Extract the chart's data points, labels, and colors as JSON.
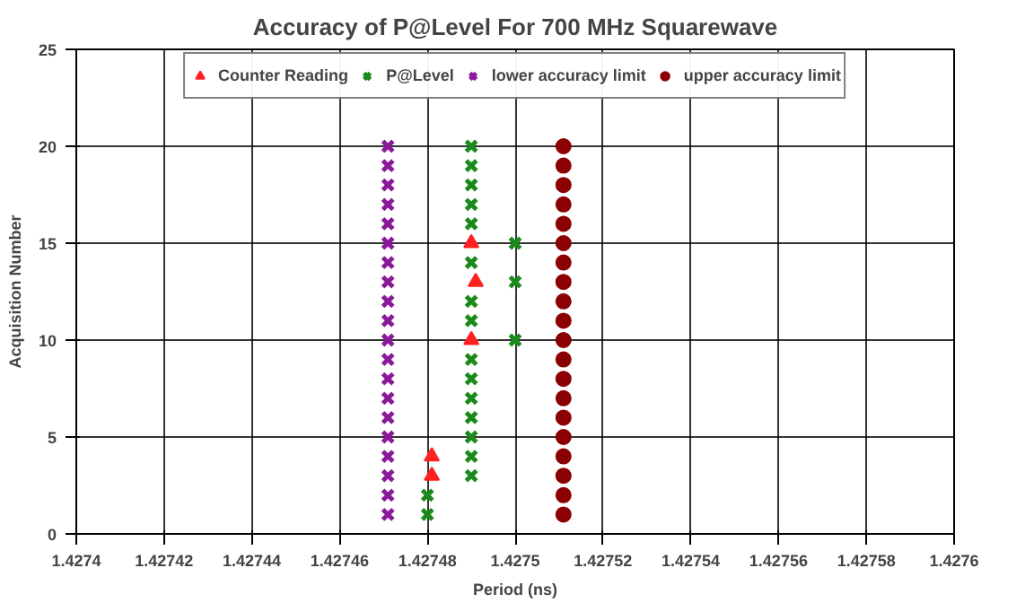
{
  "chart_data": {
    "type": "scatter",
    "title": "Accuracy of P@Level For 700 MHz Squarewave",
    "xlabel": "Period (ns)",
    "ylabel": "Acquisition Number",
    "xlim": [
      1.4274,
      1.4276
    ],
    "xticks": [
      1.4274,
      1.42742,
      1.42744,
      1.42746,
      1.42748,
      1.4275,
      1.42752,
      1.42754,
      1.42756,
      1.42758,
      1.4276
    ],
    "ylim": [
      0,
      25
    ],
    "yticks": [
      0,
      5,
      10,
      15,
      20,
      25
    ],
    "grid": true,
    "legend": "top",
    "series": [
      {
        "name": "Counter Reading",
        "color": "#ff2020",
        "marker": "triangle",
        "x": [
          1.427481,
          1.427481,
          1.42749,
          1.427491,
          1.42749
        ],
        "values": [
          3,
          4,
          10,
          13,
          15
        ]
      },
      {
        "name": "P@Level",
        "color": "#1a8a1a",
        "marker": "cross",
        "x": [
          1.42748,
          1.42748,
          1.42749,
          1.42749,
          1.42749,
          1.42749,
          1.42749,
          1.42749,
          1.42749,
          1.4275,
          1.42749,
          1.42749,
          1.4275,
          1.42749,
          1.4275,
          1.42749,
          1.42749,
          1.42749,
          1.42749,
          1.42749
        ],
        "values": [
          1,
          2,
          3,
          4,
          5,
          6,
          7,
          8,
          9,
          10,
          11,
          12,
          13,
          14,
          15,
          16,
          17,
          18,
          19,
          20
        ]
      },
      {
        "name": "lower accuracy limit",
        "color": "#8b1a9a",
        "marker": "cross",
        "x": [
          1.427471,
          1.427471,
          1.427471,
          1.427471,
          1.427471,
          1.427471,
          1.427471,
          1.427471,
          1.427471,
          1.427471,
          1.427471,
          1.427471,
          1.427471,
          1.427471,
          1.427471,
          1.427471,
          1.427471,
          1.427471,
          1.427471,
          1.427471
        ],
        "values": [
          1,
          2,
          3,
          4,
          5,
          6,
          7,
          8,
          9,
          10,
          11,
          12,
          13,
          14,
          15,
          16,
          17,
          18,
          19,
          20
        ]
      },
      {
        "name": "upper accuracy limit",
        "color": "#8b0000",
        "marker": "circle",
        "x": [
          1.427511,
          1.427511,
          1.427511,
          1.427511,
          1.427511,
          1.427511,
          1.427511,
          1.427511,
          1.427511,
          1.427511,
          1.427511,
          1.427511,
          1.427511,
          1.427511,
          1.427511,
          1.427511,
          1.427511,
          1.427511,
          1.427511,
          1.427511
        ],
        "values": [
          1,
          2,
          3,
          4,
          5,
          6,
          7,
          8,
          9,
          10,
          11,
          12,
          13,
          14,
          15,
          16,
          17,
          18,
          19,
          20
        ]
      }
    ]
  }
}
